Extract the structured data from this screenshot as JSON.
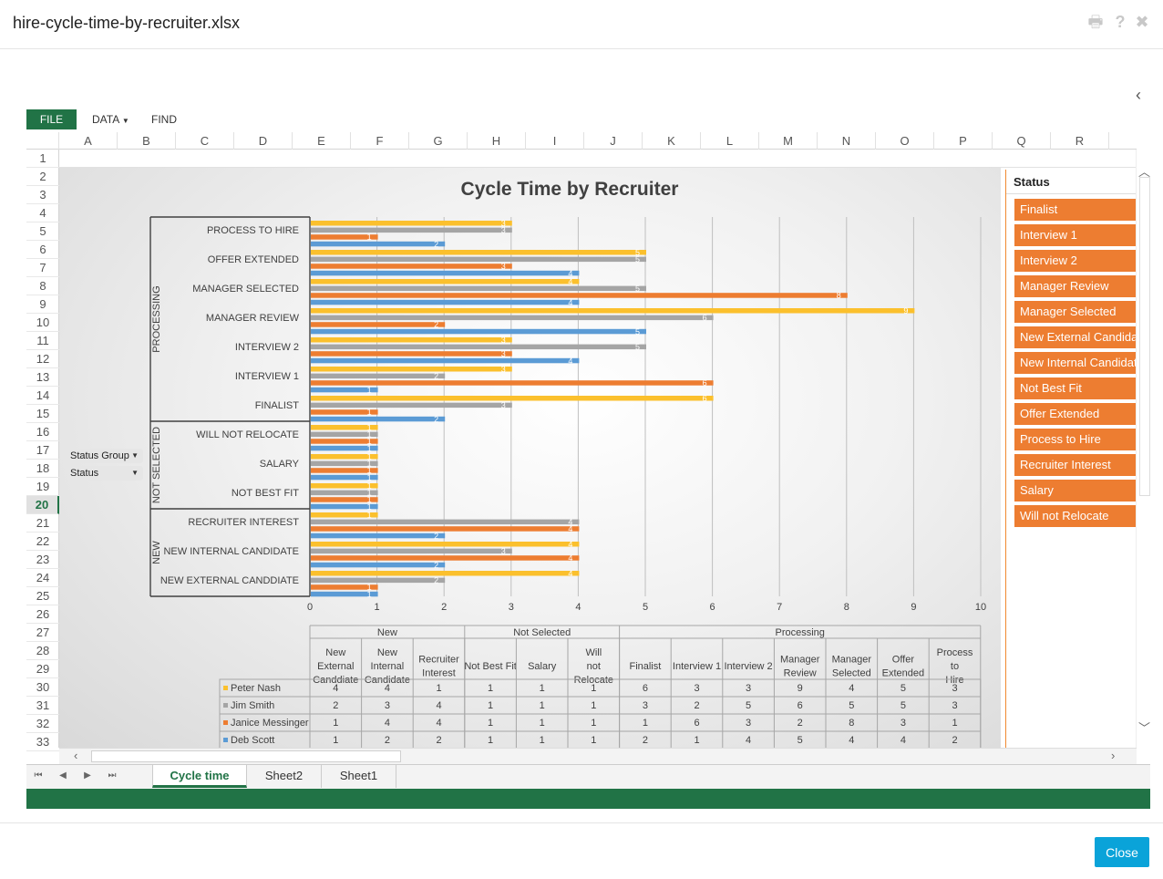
{
  "window": {
    "title": "hire-cycle-time-by-recruiter.xlsx"
  },
  "header_icons": [
    "print-icon",
    "help-icon",
    "close-icon"
  ],
  "header_icon_glyphs": {
    "print": "🖶",
    "help": "?",
    "close": "✖",
    "collapse": "‹"
  },
  "ribbon": {
    "file": "FILE",
    "data": "DATA",
    "find": "FIND"
  },
  "columns": [
    "A",
    "B",
    "C",
    "D",
    "E",
    "F",
    "G",
    "H",
    "I",
    "J",
    "K",
    "L",
    "M",
    "N",
    "O",
    "P",
    "Q",
    "R"
  ],
  "rows": [
    "1",
    "2",
    "3",
    "4",
    "5",
    "6",
    "7",
    "8",
    "9",
    "10",
    "11",
    "12",
    "13",
    "14",
    "15",
    "16",
    "17",
    "18",
    "19",
    "20",
    "21",
    "22",
    "23",
    "24",
    "25",
    "26",
    "27",
    "28",
    "29",
    "30",
    "31",
    "32",
    "33"
  ],
  "active_row": "20",
  "fields": {
    "status_group": "Status Group",
    "status": "Status"
  },
  "slicer": {
    "title": "Status",
    "items": [
      "Finalist",
      "Interview 1",
      "Interview 2",
      "Manager Review",
      "Manager Selected",
      "New External Candidate",
      "New Internal Candidate",
      "Not Best Fit",
      "Offer Extended",
      "Process to Hire",
      "Recruiter Interest",
      "Salary",
      "Will not Relocate"
    ]
  },
  "sheets": [
    "Cycle time",
    "Sheet2",
    "Sheet1"
  ],
  "active_sheet": "Cycle time",
  "close_button": "Close",
  "colors": {
    "peter": "#fbc02d",
    "jim": "#a5a5a5",
    "janice": "#ed7d31",
    "deb": "#5b9bd5",
    "excel_green": "#217346"
  },
  "chart_data": {
    "type": "bar",
    "title": "Cycle Time by Recruiter",
    "xlim": [
      0,
      10
    ],
    "x_ticks": [
      "0",
      "1",
      "2",
      "3",
      "4",
      "5",
      "6",
      "7",
      "8",
      "9",
      "10"
    ],
    "groups": [
      {
        "name": "PROCESSING",
        "categories": [
          "PROCESS TO HIRE",
          "OFFER EXTENDED",
          "MANAGER SELECTED",
          "MANAGER REVIEW",
          "INTERVIEW 2",
          "INTERVIEW 1",
          "FINALIST"
        ]
      },
      {
        "name": "NOT SELECTED",
        "categories": [
          "WILL NOT RELOCATE",
          "SALARY",
          "NOT BEST FIT"
        ]
      },
      {
        "name": "NEW",
        "categories": [
          "RECRUITER INTEREST",
          "NEW INTERNAL CANDIDATE",
          "NEW EXTERNAL CANDDIATE"
        ]
      }
    ],
    "table_categories": [
      "New External Canddiate",
      "New Internal Candidate",
      "Recruiter Interest",
      "Not Best Fit",
      "Salary",
      "Will not Relocate",
      "Finalist",
      "Interview 1",
      "Interview 2",
      "Manager Review",
      "Manager Selected",
      "Offer Extended",
      "Process to Hire"
    ],
    "table_groups": [
      {
        "name": "New",
        "span": 3
      },
      {
        "name": "Not Selected",
        "span": 3
      },
      {
        "name": "Processing",
        "span": 7
      }
    ],
    "series": [
      {
        "name": "Peter Nash",
        "values": [
          4,
          4,
          1,
          1,
          1,
          1,
          6,
          3,
          3,
          9,
          4,
          5,
          3
        ]
      },
      {
        "name": "Jim Smith",
        "values": [
          2,
          3,
          4,
          1,
          1,
          1,
          3,
          2,
          5,
          6,
          5,
          5,
          3
        ]
      },
      {
        "name": "Janice Messinger",
        "values": [
          1,
          4,
          4,
          1,
          1,
          1,
          1,
          6,
          3,
          2,
          8,
          3,
          1
        ]
      },
      {
        "name": "Deb Scott",
        "values": [
          1,
          2,
          2,
          1,
          1,
          1,
          2,
          1,
          4,
          5,
          4,
          4,
          2
        ]
      }
    ]
  }
}
